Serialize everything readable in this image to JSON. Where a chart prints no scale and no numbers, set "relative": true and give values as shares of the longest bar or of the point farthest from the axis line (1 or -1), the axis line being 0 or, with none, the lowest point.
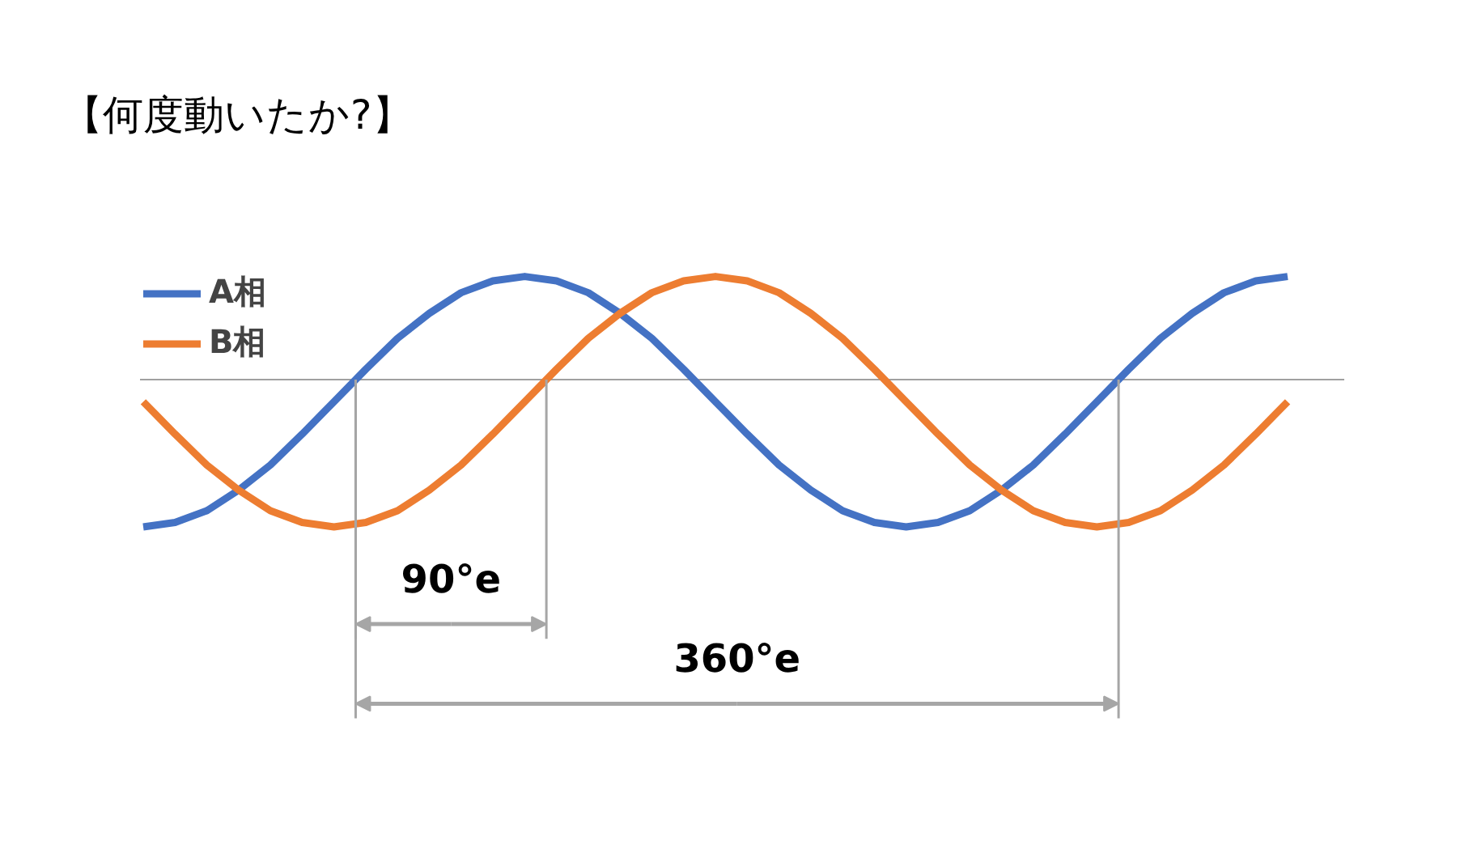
{
  "chart_data": {
    "type": "line",
    "title": "【何度動いたか?】",
    "relative": true,
    "grid": false,
    "legend": "top left",
    "marker": "none",
    "line_style": "solid",
    "categories": [
      null,
      null,
      null,
      null,
      null,
      null,
      null,
      null,
      null,
      null,
      null,
      null,
      null,
      null,
      null,
      null,
      null,
      null,
      null,
      null,
      null,
      null,
      null,
      null,
      null,
      null,
      null,
      null,
      null,
      null,
      null,
      null,
      null,
      null,
      null,
      null,
      null
    ],
    "series": [
      {
        "name": "A相",
        "color": "#4472c4",
        "values": [
          -1.0,
          -0.97,
          -0.89,
          -0.75,
          -0.58,
          -0.37,
          -0.15,
          0.07,
          0.28,
          0.45,
          0.59,
          0.67,
          0.7,
          0.67,
          0.59,
          0.45,
          0.28,
          0.07,
          -0.15,
          -0.37,
          -0.58,
          -0.75,
          -0.89,
          -0.97,
          -1.0,
          -0.97,
          -0.89,
          -0.75,
          -0.58,
          -0.37,
          -0.15,
          0.07,
          0.28,
          0.45,
          0.59,
          0.67,
          0.7
        ]
      },
      {
        "name": "B相",
        "color": "#ed7d31",
        "values": [
          -0.15,
          -0.37,
          -0.58,
          -0.75,
          -0.89,
          -0.97,
          -1.0,
          -0.97,
          -0.89,
          -0.75,
          -0.58,
          -0.37,
          -0.15,
          0.07,
          0.28,
          0.45,
          0.59,
          0.67,
          0.7,
          0.67,
          0.59,
          0.45,
          0.28,
          0.07,
          -0.15,
          -0.37,
          -0.58,
          -0.75,
          -0.89,
          -0.97,
          -1.0,
          -0.97,
          -0.89,
          -0.75,
          -0.58,
          -0.37,
          -0.15
        ]
      }
    ],
    "annotations": [
      "90°e",
      "360°e"
    ]
  }
}
